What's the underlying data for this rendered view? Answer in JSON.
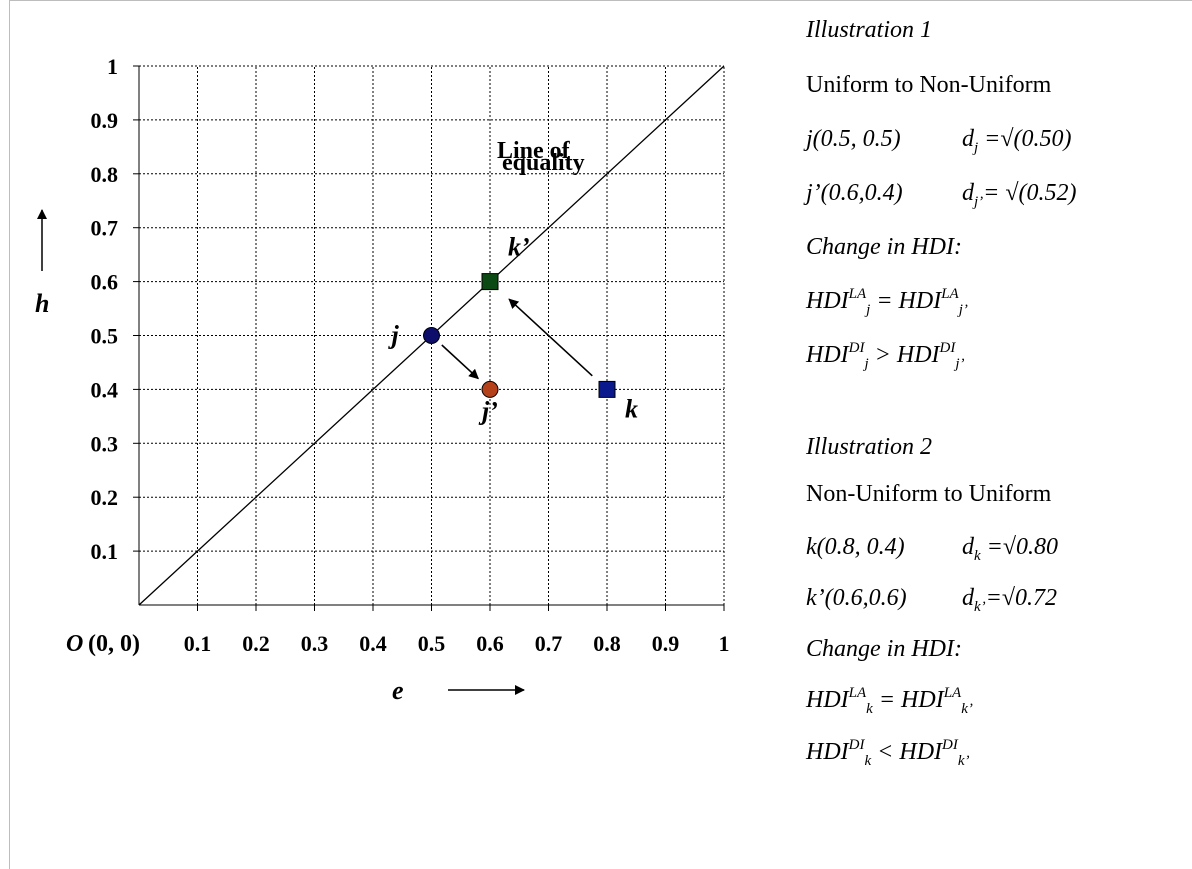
{
  "chart_data": {
    "type": "scatter",
    "xlabel": "e",
    "ylabel": "h",
    "xlim": [
      0,
      1
    ],
    "ylim": [
      0,
      1
    ],
    "grid": true,
    "x_ticks": [
      "0.1",
      "0.2",
      "0.3",
      "0.4",
      "0.5",
      "0.6",
      "0.7",
      "0.8",
      "0.9",
      "1"
    ],
    "y_ticks": [
      "0.1",
      "0.2",
      "0.3",
      "0.4",
      "0.5",
      "0.6",
      "0.7",
      "0.8",
      "0.9",
      "1"
    ],
    "origin_label": {
      "o": "O",
      "rest": "(0, 0)"
    },
    "reference_line": {
      "x": [
        0,
        1
      ],
      "y": [
        0,
        1
      ],
      "label_line1": "Line of",
      "label_line2": "equality"
    },
    "points": [
      {
        "label": "j",
        "x": 0.5,
        "y": 0.5,
        "marker": "circle",
        "color": "#0d0d6b"
      },
      {
        "label": "j’",
        "x": 0.6,
        "y": 0.4,
        "marker": "circle",
        "color": "#b5411a"
      },
      {
        "label": "k",
        "x": 0.8,
        "y": 0.4,
        "marker": "square",
        "color": "#0a1a8c"
      },
      {
        "label": "k’",
        "x": 0.6,
        "y": 0.6,
        "marker": "square",
        "color": "#0b4a12"
      }
    ],
    "arrows": [
      {
        "from": "j",
        "to": "j’"
      },
      {
        "from": "k",
        "to": "k’"
      }
    ]
  },
  "illustration1": {
    "title": "Illustration 1",
    "subtitle": "Uniform to Non-Uniform",
    "pt1": "j(0.5, 0.5)",
    "d1_var": "d",
    "d1_sub": "j",
    "d1_val": " =√(0.50)",
    "pt2": "j’(0.6,0.4)",
    "d2_var": "d",
    "d2_sub": "j’",
    "d2_val": "= √(0.52)",
    "change": "Change in HDI:",
    "eq1": {
      "a": "HDI",
      "a_sup": "LA",
      "a_sub": "j",
      "op": " = ",
      "b": "HDI",
      "b_sup": "LA",
      "b_sub": "j’"
    },
    "eq2": {
      "a": "HDI",
      "a_sup": "DI",
      "a_sub": "j",
      "op": " > ",
      "b": "HDI",
      "b_sup": "DI",
      "b_sub": "j’"
    }
  },
  "illustration2": {
    "title": "Illustration 2",
    "subtitle": "Non-Uniform to Uniform",
    "pt1": "k(0.8, 0.4)",
    "d1_var": "d",
    "d1_sub": "k",
    "d1_val": " =√0.80",
    "pt2": "k’(0.6,0.6)",
    "d2_var": "d",
    "d2_sub": "k’",
    "d2_val": "=√0.72",
    "change": "Change in HDI:",
    "eq1": {
      "a": "HDI",
      "a_sup": "LA",
      "a_sub": "k",
      "op": " = ",
      "b": "HDI",
      "b_sup": "LA",
      "b_sub": "k’"
    },
    "eq2": {
      "a": "HDI",
      "a_sup": "DI",
      "a_sub": "k",
      "op": " < ",
      "b": "HDI",
      "b_sup": "DI",
      "b_sub": "k’"
    }
  }
}
